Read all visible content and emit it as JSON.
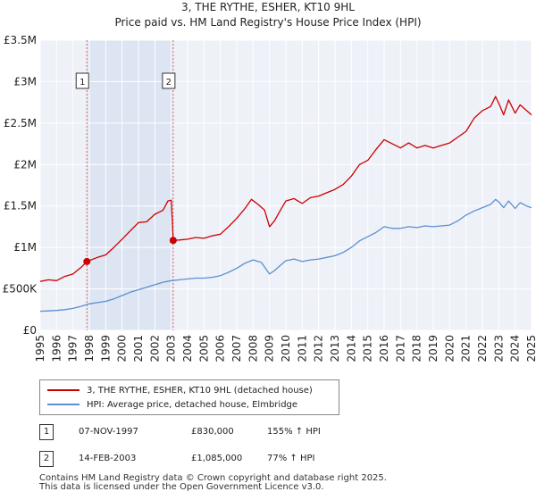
{
  "chart_data": {
    "type": "line",
    "title": "3, THE RYTHE, ESHER, KT10 9HL",
    "subtitle": "Price paid vs. HM Land Registry's House Price Index (HPI)",
    "xlabel": "",
    "ylabel": "",
    "xlim": [
      1995,
      2025
    ],
    "ylim": [
      0,
      3500000
    ],
    "x_ticks": [
      "1995",
      "1996",
      "1997",
      "1998",
      "1999",
      "2000",
      "2001",
      "2002",
      "2003",
      "2004",
      "2005",
      "2006",
      "2007",
      "2008",
      "2009",
      "2010",
      "2011",
      "2012",
      "2013",
      "2014",
      "2015",
      "2016",
      "2017",
      "2018",
      "2019",
      "2020",
      "2021",
      "2022",
      "2023",
      "2024",
      "2025"
    ],
    "y_ticks": [
      {
        "value": 0,
        "label": "£0"
      },
      {
        "value": 500000,
        "label": "£500K"
      },
      {
        "value": 1000000,
        "label": "£1M"
      },
      {
        "value": 1500000,
        "label": "£1.5M"
      },
      {
        "value": 2000000,
        "label": "£2M"
      },
      {
        "value": 2500000,
        "label": "£2.5M"
      },
      {
        "value": 3000000,
        "label": "£3M"
      },
      {
        "value": 3500000,
        "label": "£3.5M"
      }
    ],
    "grid": true,
    "legend_position": "bottom-left",
    "series": [
      {
        "name": "3, THE RYTHE, ESHER, KT10 9HL (detached house)",
        "color": "#cc0000",
        "points": [
          [
            1995.0,
            590000
          ],
          [
            1995.5,
            610000
          ],
          [
            1996.0,
            600000
          ],
          [
            1996.5,
            650000
          ],
          [
            1997.0,
            680000
          ],
          [
            1997.5,
            760000
          ],
          [
            1997.85,
            830000
          ],
          [
            1998.5,
            880000
          ],
          [
            1999.0,
            910000
          ],
          [
            1999.5,
            1000000
          ],
          [
            2000.0,
            1100000
          ],
          [
            2000.5,
            1200000
          ],
          [
            2001.0,
            1300000
          ],
          [
            2001.5,
            1310000
          ],
          [
            2002.0,
            1400000
          ],
          [
            2002.5,
            1450000
          ],
          [
            2002.8,
            1560000
          ],
          [
            2003.0,
            1570000
          ],
          [
            2003.12,
            1085000
          ],
          [
            2003.5,
            1090000
          ],
          [
            2004.0,
            1100000
          ],
          [
            2004.5,
            1120000
          ],
          [
            2005.0,
            1110000
          ],
          [
            2005.5,
            1140000
          ],
          [
            2006.0,
            1160000
          ],
          [
            2006.5,
            1250000
          ],
          [
            2007.0,
            1350000
          ],
          [
            2007.5,
            1470000
          ],
          [
            2007.9,
            1580000
          ],
          [
            2008.3,
            1520000
          ],
          [
            2008.7,
            1450000
          ],
          [
            2009.0,
            1250000
          ],
          [
            2009.3,
            1320000
          ],
          [
            2009.7,
            1460000
          ],
          [
            2010.0,
            1560000
          ],
          [
            2010.5,
            1590000
          ],
          [
            2011.0,
            1530000
          ],
          [
            2011.5,
            1600000
          ],
          [
            2012.0,
            1620000
          ],
          [
            2012.5,
            1660000
          ],
          [
            2013.0,
            1700000
          ],
          [
            2013.5,
            1760000
          ],
          [
            2014.0,
            1860000
          ],
          [
            2014.5,
            2000000
          ],
          [
            2015.0,
            2050000
          ],
          [
            2015.5,
            2180000
          ],
          [
            2016.0,
            2300000
          ],
          [
            2016.5,
            2250000
          ],
          [
            2017.0,
            2200000
          ],
          [
            2017.5,
            2260000
          ],
          [
            2018.0,
            2200000
          ],
          [
            2018.5,
            2230000
          ],
          [
            2019.0,
            2200000
          ],
          [
            2019.5,
            2230000
          ],
          [
            2020.0,
            2260000
          ],
          [
            2020.5,
            2330000
          ],
          [
            2021.0,
            2400000
          ],
          [
            2021.5,
            2560000
          ],
          [
            2022.0,
            2650000
          ],
          [
            2022.5,
            2700000
          ],
          [
            2022.8,
            2820000
          ],
          [
            2023.0,
            2740000
          ],
          [
            2023.3,
            2600000
          ],
          [
            2023.6,
            2780000
          ],
          [
            2024.0,
            2620000
          ],
          [
            2024.3,
            2720000
          ],
          [
            2024.7,
            2650000
          ],
          [
            2025.0,
            2600000
          ]
        ]
      },
      {
        "name": "HPI: Average price, detached house, Elmbridge",
        "color": "#5b8fcf",
        "points": [
          [
            1995.0,
            230000
          ],
          [
            1995.5,
            235000
          ],
          [
            1996.0,
            240000
          ],
          [
            1996.5,
            250000
          ],
          [
            1997.0,
            265000
          ],
          [
            1997.5,
            290000
          ],
          [
            1998.0,
            320000
          ],
          [
            1998.5,
            335000
          ],
          [
            1999.0,
            350000
          ],
          [
            1999.5,
            380000
          ],
          [
            2000.0,
            420000
          ],
          [
            2000.5,
            460000
          ],
          [
            2001.0,
            490000
          ],
          [
            2001.5,
            520000
          ],
          [
            2002.0,
            550000
          ],
          [
            2002.5,
            580000
          ],
          [
            2003.0,
            600000
          ],
          [
            2003.5,
            610000
          ],
          [
            2004.0,
            620000
          ],
          [
            2004.5,
            630000
          ],
          [
            2005.0,
            630000
          ],
          [
            2005.5,
            640000
          ],
          [
            2006.0,
            660000
          ],
          [
            2006.5,
            700000
          ],
          [
            2007.0,
            750000
          ],
          [
            2007.5,
            810000
          ],
          [
            2008.0,
            850000
          ],
          [
            2008.5,
            820000
          ],
          [
            2009.0,
            680000
          ],
          [
            2009.3,
            720000
          ],
          [
            2009.7,
            790000
          ],
          [
            2010.0,
            840000
          ],
          [
            2010.5,
            860000
          ],
          [
            2011.0,
            830000
          ],
          [
            2011.5,
            850000
          ],
          [
            2012.0,
            860000
          ],
          [
            2012.5,
            880000
          ],
          [
            2013.0,
            900000
          ],
          [
            2013.5,
            940000
          ],
          [
            2014.0,
            1000000
          ],
          [
            2014.5,
            1080000
          ],
          [
            2015.0,
            1130000
          ],
          [
            2015.5,
            1180000
          ],
          [
            2016.0,
            1250000
          ],
          [
            2016.5,
            1230000
          ],
          [
            2017.0,
            1230000
          ],
          [
            2017.5,
            1250000
          ],
          [
            2018.0,
            1240000
          ],
          [
            2018.5,
            1260000
          ],
          [
            2019.0,
            1250000
          ],
          [
            2019.5,
            1260000
          ],
          [
            2020.0,
            1270000
          ],
          [
            2020.5,
            1320000
          ],
          [
            2021.0,
            1390000
          ],
          [
            2021.5,
            1440000
          ],
          [
            2022.0,
            1480000
          ],
          [
            2022.5,
            1520000
          ],
          [
            2022.8,
            1580000
          ],
          [
            2023.0,
            1550000
          ],
          [
            2023.3,
            1480000
          ],
          [
            2023.6,
            1560000
          ],
          [
            2024.0,
            1470000
          ],
          [
            2024.3,
            1540000
          ],
          [
            2024.7,
            1500000
          ],
          [
            2025.0,
            1480000
          ]
        ]
      }
    ],
    "annotations": [
      {
        "label": "1",
        "x": 1997.85,
        "y": 830000
      },
      {
        "label": "2",
        "x": 2003.12,
        "y": 1085000
      }
    ]
  },
  "legend": {
    "items": [
      {
        "label": "3, THE RYTHE, ESHER, KT10 9HL (detached house)",
        "color": "#cc0000"
      },
      {
        "label": "HPI: Average price, detached house, Elmbridge",
        "color": "#5b8fcf"
      }
    ]
  },
  "transactions": [
    {
      "num": "1",
      "date": "07-NOV-1997",
      "price": "£830,000",
      "hpi": "155% ↑ HPI"
    },
    {
      "num": "2",
      "date": "14-FEB-2003",
      "price": "£1,085,000",
      "hpi": "77% ↑ HPI"
    }
  ],
  "footer": {
    "line1": "Contains HM Land Registry data © Crown copyright and database right 2025.",
    "line2": "This data is licensed under the Open Government Licence v3.0."
  }
}
